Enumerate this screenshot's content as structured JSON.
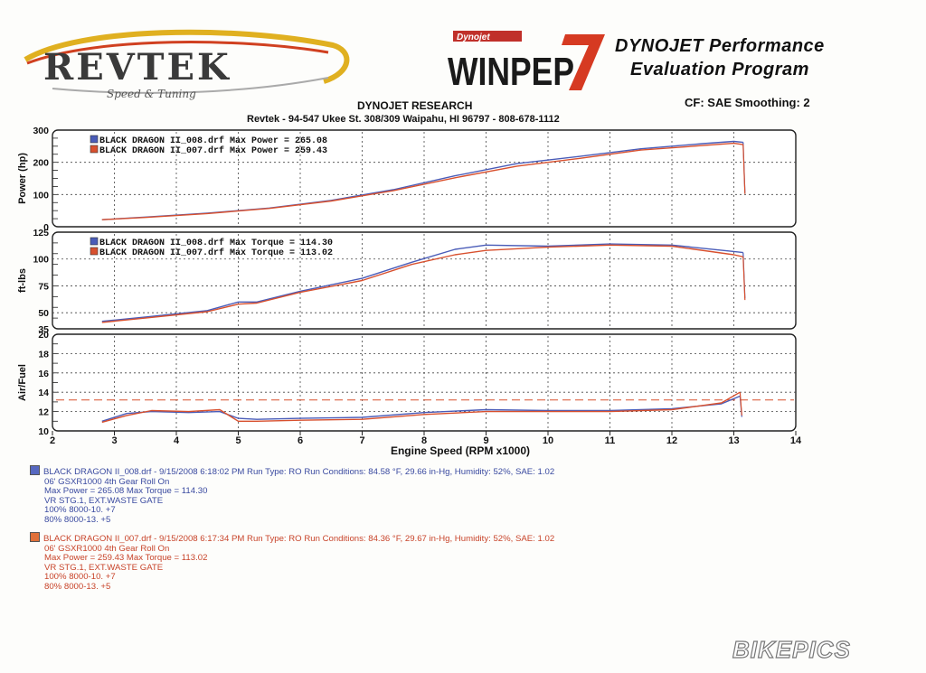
{
  "header": {
    "logo_text": "REVTEK",
    "logo_tagline": "Speed & Tuning",
    "badge_text": "Dynojet",
    "winpep_text": "WINPEP",
    "program_line1": "DYNOJET Performance",
    "program_line2": "Evaluation Program",
    "company": "DYNOJET RESEARCH",
    "address": "Revtek - 94-547 Ukee St. 308/309 Waipahu, HI 96797 - 808-678-1112",
    "cf_text": "CF: SAE  Smoothing: 2"
  },
  "colors": {
    "run1": "#4a5cb8",
    "run2": "#d8502e",
    "grid": "#333333"
  },
  "chart_data": [
    {
      "type": "line",
      "ylabel": "Power (hp)",
      "ylim": [
        0,
        300
      ],
      "yticks": [
        0,
        100,
        200,
        300
      ],
      "xlim": [
        2,
        14
      ],
      "grid": true,
      "legend": [
        "BLACK DRAGON II_008.drf Max Power = 265.08",
        "BLACK DRAGON II_007.drf Max Power = 259.43"
      ],
      "series": [
        {
          "name": "BLACK DRAGON II_008.drf",
          "x": [
            2.8,
            3.5,
            4.5,
            5.5,
            6.5,
            7.5,
            8.5,
            9.5,
            10.5,
            11.5,
            12.5,
            13.0,
            13.15
          ],
          "y": [
            22,
            30,
            42,
            58,
            82,
            115,
            158,
            196,
            218,
            242,
            258,
            265,
            262
          ]
        },
        {
          "name": "BLACK DRAGON II_007.drf",
          "x": [
            2.8,
            3.5,
            4.5,
            5.5,
            6.5,
            7.5,
            8.5,
            9.5,
            10.5,
            11.5,
            12.5,
            13.0,
            13.15
          ],
          "y": [
            22,
            29,
            41,
            57,
            80,
            112,
            152,
            188,
            212,
            238,
            252,
            259,
            255
          ]
        }
      ]
    },
    {
      "type": "line",
      "ylabel": "ft-lbs",
      "ylim": [
        35,
        125
      ],
      "yticks": [
        35,
        50,
        75,
        100,
        125
      ],
      "xlim": [
        2,
        14
      ],
      "grid": true,
      "legend": [
        "BLACK DRAGON II_008.drf Max Torque = 114.30",
        "BLACK DRAGON II_007.drf Max Torque = 113.02"
      ],
      "series": [
        {
          "name": "BLACK DRAGON II_008.drf",
          "x": [
            2.8,
            3.5,
            4.5,
            5.0,
            5.3,
            6.0,
            7.0,
            7.8,
            8.5,
            9.0,
            10.0,
            11.0,
            12.0,
            13.0,
            13.15
          ],
          "y": [
            42,
            46,
            52,
            60,
            60,
            70,
            82,
            97,
            109,
            113,
            112,
            114,
            113,
            107,
            106
          ]
        },
        {
          "name": "BLACK DRAGON II_007.drf",
          "x": [
            2.8,
            3.5,
            4.5,
            5.0,
            5.3,
            6.0,
            7.0,
            7.8,
            8.5,
            9.0,
            10.0,
            11.0,
            12.0,
            13.0,
            13.15
          ],
          "y": [
            41,
            45,
            51,
            58,
            59,
            69,
            80,
            95,
            104,
            108,
            111,
            113,
            112,
            104,
            102
          ]
        }
      ]
    },
    {
      "type": "line",
      "ylabel": "Air/Fuel",
      "ylim": [
        10,
        20
      ],
      "yticks": [
        10,
        12,
        14,
        16,
        18,
        20
      ],
      "xlim": [
        2,
        14
      ],
      "xlabel": "Engine Speed (RPM x1000)",
      "xticks": [
        2,
        3,
        4,
        5,
        6,
        7,
        8,
        9,
        10,
        11,
        12,
        13,
        14
      ],
      "grid": true,
      "reference_line": 13.2,
      "series": [
        {
          "name": "BLACK DRAGON II_008.drf",
          "x": [
            2.8,
            3.2,
            3.6,
            4.2,
            4.7,
            5.0,
            5.3,
            6.0,
            7.0,
            8.0,
            9.0,
            10.0,
            11.0,
            12.0,
            12.8,
            13.1
          ],
          "y": [
            11.0,
            11.8,
            12.0,
            11.9,
            12.0,
            11.3,
            11.2,
            11.3,
            11.4,
            11.9,
            12.2,
            12.1,
            12.1,
            12.3,
            12.8,
            13.6
          ]
        },
        {
          "name": "BLACK DRAGON II_007.drf",
          "x": [
            2.8,
            3.2,
            3.6,
            4.2,
            4.7,
            5.0,
            5.3,
            6.0,
            7.0,
            8.0,
            9.0,
            10.0,
            11.0,
            12.0,
            12.8,
            13.1
          ],
          "y": [
            10.9,
            11.6,
            12.1,
            12.0,
            12.2,
            11.0,
            11.0,
            11.1,
            11.2,
            11.7,
            12.0,
            12.0,
            12.0,
            12.2,
            12.9,
            14.0
          ]
        }
      ]
    }
  ],
  "runs": [
    {
      "header": "BLACK DRAGON II_008.drf - 9/15/2008 6:18:02 PM  Run Type: RO  Run Conditions: 84.58 °F, 29.66 in-Hg,  Humidity: 52%, SAE: 1.02",
      "lines": [
        "06' GSXR1000 4th Gear Roll On",
        "Max Power = 265.08  Max Torque = 114.30",
        "VR STG.1, EXT.WASTE GATE",
        "100% 8000-10. +7",
        "80% 8000-13. +5"
      ]
    },
    {
      "header": "BLACK DRAGON II_007.drf - 9/15/2008 6:17:34 PM  Run Type: RO  Run Conditions: 84.36 °F, 29.67 in-Hg,  Humidity: 52%, SAE: 1.02",
      "lines": [
        "06' GSXR1000 4th Gear Roll On",
        "Max Power = 259.43  Max Torque = 113.02",
        "VR STG.1, EXT.WASTE GATE",
        "100% 8000-10. +7",
        "80% 8000-13. +5"
      ]
    }
  ],
  "watermark": "BIKEPICS"
}
